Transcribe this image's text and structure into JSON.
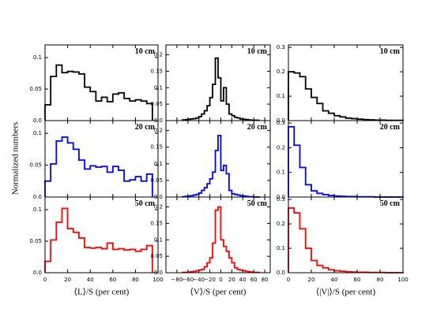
{
  "ylabel": "Normalized numbers",
  "chart_data": [
    {
      "type": "histogram",
      "annotation": "10 cm",
      "color": "#000000",
      "bins": [
        0,
        5,
        10,
        15,
        20,
        25,
        30,
        35,
        40,
        45,
        50,
        55,
        60,
        65,
        70,
        75,
        80,
        85,
        90,
        95
      ],
      "values": [
        0.025,
        0.07,
        0.088,
        0.076,
        0.078,
        0.077,
        0.074,
        0.053,
        0.046,
        0.031,
        0.037,
        0.03,
        0.042,
        0.044,
        0.035,
        0.031,
        0.033,
        0.031,
        0.027
      ],
      "xlim": [
        0,
        100
      ],
      "ylim": [
        0,
        0.12
      ],
      "xticks": [
        0,
        20,
        40,
        60,
        80,
        100
      ],
      "yticks": [
        {
          "value": 0,
          "label": "0.0"
        },
        0.05,
        0.1
      ]
    },
    {
      "type": "histogram",
      "annotation": "10 cm",
      "color": "#000000",
      "bins": [
        -70,
        -65,
        -60,
        -55,
        -50,
        -45,
        -40,
        -35,
        -30,
        -25,
        -20,
        -15,
        -10,
        -5,
        0,
        5,
        10,
        15,
        20,
        25,
        30,
        35,
        40,
        45,
        50,
        55,
        60,
        65,
        70
      ],
      "values": [
        0.002,
        0.003,
        0.004,
        0.005,
        0.006,
        0.008,
        0.012,
        0.02,
        0.03,
        0.045,
        0.07,
        0.11,
        0.19,
        0.13,
        0.06,
        0.1,
        0.05,
        0.02,
        0.015,
        0.01,
        0.008,
        0.005,
        0.004,
        0.003,
        0.002,
        0.001,
        0.001,
        0.001
      ],
      "xlim": [
        -100,
        90
      ],
      "ylim": [
        0,
        0.23
      ],
      "xticks": [
        -80,
        -60,
        -40,
        -20,
        0,
        20,
        40,
        60,
        80
      ],
      "yticks": [
        {
          "value": 0,
          "label": "0.0"
        },
        0.05,
        0.1,
        0.15,
        0.2
      ]
    },
    {
      "type": "histogram",
      "annotation": "10 cm",
      "color": "#000000",
      "bins": [
        0,
        5,
        10,
        15,
        20,
        25,
        30,
        35,
        40,
        45,
        50,
        55,
        60,
        65,
        70,
        75,
        80,
        85,
        90,
        95,
        100
      ],
      "values": [
        0.2,
        0.195,
        0.18,
        0.13,
        0.095,
        0.07,
        0.04,
        0.03,
        0.02,
        0.015,
        0.01,
        0.008,
        0.006,
        0.004,
        0.003,
        0.002,
        0.002,
        0.001,
        0.001,
        0.001
      ],
      "xlim": [
        0,
        100
      ],
      "ylim": [
        0,
        0.31
      ],
      "xticks": [
        0,
        20,
        40,
        60,
        80,
        100
      ],
      "yticks": [
        {
          "value": 0,
          "label": "0.0"
        },
        0.1,
        0.2,
        0.3
      ]
    },
    {
      "type": "histogram",
      "annotation": "20 cm",
      "color": "#0000ff",
      "bins": [
        0,
        5,
        10,
        15,
        20,
        25,
        30,
        35,
        40,
        45,
        50,
        55,
        60,
        65,
        70,
        75,
        80,
        85,
        90,
        95
      ],
      "values": [
        0.025,
        0.052,
        0.088,
        0.094,
        0.085,
        0.075,
        0.058,
        0.044,
        0.049,
        0.047,
        0.048,
        0.039,
        0.048,
        0.042,
        0.025,
        0.027,
        0.032,
        0.025,
        0.036
      ],
      "xlim": [
        0,
        100
      ],
      "ylim": [
        0,
        0.12
      ],
      "xticks": [
        0,
        20,
        40,
        60,
        80,
        100
      ],
      "yticks": [
        {
          "value": 0,
          "label": "0.0"
        },
        0.05,
        0.1
      ]
    },
    {
      "type": "histogram",
      "annotation": "20 cm",
      "color": "#0000ff",
      "bins": [
        -70,
        -65,
        -60,
        -55,
        -50,
        -45,
        -40,
        -35,
        -30,
        -25,
        -20,
        -15,
        -10,
        -5,
        0,
        5,
        10,
        15,
        20,
        25,
        30,
        35,
        40,
        45,
        50,
        55,
        60,
        65,
        70
      ],
      "values": [
        0.001,
        0.002,
        0.003,
        0.004,
        0.006,
        0.008,
        0.012,
        0.02,
        0.028,
        0.04,
        0.055,
        0.075,
        0.14,
        0.185,
        0.08,
        0.095,
        0.07,
        0.02,
        0.01,
        0.008,
        0.006,
        0.004,
        0.003,
        0.002,
        0.001,
        0.001,
        0,
        0
      ],
      "xlim": [
        -100,
        90
      ],
      "ylim": [
        0,
        0.23
      ],
      "xticks": [
        -80,
        -60,
        -40,
        -20,
        0,
        20,
        40,
        60,
        80
      ],
      "yticks": [
        {
          "value": 0,
          "label": "0.0"
        },
        0.05,
        0.1,
        0.15,
        0.2
      ]
    },
    {
      "type": "histogram",
      "annotation": "20 cm",
      "color": "#0000ff",
      "bins": [
        0,
        5,
        10,
        15,
        20,
        25,
        30,
        35,
        40,
        45,
        50,
        55,
        60,
        65,
        70,
        75,
        80,
        85,
        90,
        95,
        100
      ],
      "values": [
        0.285,
        0.21,
        0.12,
        0.05,
        0.025,
        0.015,
        0.01,
        0.006,
        0.004,
        0.003,
        0.002,
        0.002,
        0.001,
        0.001,
        0.001,
        0,
        0,
        0,
        0,
        0
      ],
      "xlim": [
        0,
        100
      ],
      "ylim": [
        0,
        0.31
      ],
      "xticks": [
        0,
        20,
        40,
        60,
        80,
        100
      ],
      "yticks": [
        {
          "value": 0,
          "label": "0.0"
        },
        0.1,
        0.2,
        0.3
      ]
    },
    {
      "type": "histogram",
      "annotation": "50 cm",
      "color": "#ff0000",
      "bins": [
        0,
        5,
        10,
        15,
        20,
        25,
        30,
        35,
        40,
        45,
        50,
        55,
        60,
        65,
        70,
        75,
        80,
        85,
        90,
        95
      ],
      "values": [
        0.018,
        0.052,
        0.08,
        0.102,
        0.07,
        0.064,
        0.055,
        0.04,
        0.039,
        0.04,
        0.038,
        0.047,
        0.037,
        0.038,
        0.036,
        0.037,
        0.034,
        0.037,
        0.043
      ],
      "xlim": [
        0,
        100
      ],
      "ylim": [
        0,
        0.12
      ],
      "xticks": [
        0,
        20,
        40,
        60,
        80,
        100
      ],
      "yticks": [
        {
          "value": 0,
          "label": "0.0"
        },
        0.05,
        0.1
      ],
      "xlabel": "⟨L⟩/S (per cent)"
    },
    {
      "type": "histogram",
      "annotation": "50 cm",
      "color": "#ff0000",
      "bins": [
        -70,
        -65,
        -60,
        -55,
        -50,
        -45,
        -40,
        -35,
        -30,
        -25,
        -20,
        -15,
        -10,
        -5,
        0,
        5,
        10,
        15,
        20,
        25,
        30,
        35,
        40,
        45,
        50,
        55,
        60,
        65,
        70
      ],
      "values": [
        0.001,
        0.001,
        0.002,
        0.003,
        0.004,
        0.006,
        0.008,
        0.01,
        0.018,
        0.03,
        0.045,
        0.09,
        0.19,
        0.2,
        0.1,
        0.08,
        0.065,
        0.045,
        0.03,
        0.015,
        0.01,
        0.008,
        0.006,
        0.004,
        0.003,
        0.002,
        0.001,
        0.001
      ],
      "xlim": [
        -100,
        90
      ],
      "ylim": [
        0,
        0.23
      ],
      "xticks": [
        {
          "value": -80,
          "label": "−80"
        },
        {
          "value": -60,
          "label": "−60"
        },
        {
          "value": -40,
          "label": "−40"
        },
        {
          "value": -20,
          "label": "−20"
        },
        0,
        20,
        40,
        60,
        80
      ],
      "yticks": [
        {
          "value": 0,
          "label": "0.0"
        },
        0.05,
        0.1,
        0.15,
        0.2
      ],
      "xlabel": "⟨V⟩/S (per cent)"
    },
    {
      "type": "histogram",
      "annotation": "50 cm",
      "color": "#ff0000",
      "bins": [
        0,
        5,
        10,
        15,
        20,
        25,
        30,
        35,
        40,
        45,
        50,
        55,
        60,
        65,
        70,
        75,
        80,
        85,
        90,
        95,
        100
      ],
      "values": [
        0.265,
        0.245,
        0.18,
        0.1,
        0.05,
        0.03,
        0.02,
        0.012,
        0.008,
        0.006,
        0.004,
        0.003,
        0.002,
        0.002,
        0.001,
        0.001,
        0.001,
        0,
        0,
        0
      ],
      "xlim": [
        0,
        100
      ],
      "ylim": [
        0,
        0.31
      ],
      "xticks": [
        0,
        20,
        40,
        60,
        80,
        100
      ],
      "yticks": [
        {
          "value": 0,
          "label": "0.0"
        },
        0.1,
        0.2,
        0.3
      ],
      "xlabel": "⟨|V|⟩/S (per cent)"
    }
  ]
}
